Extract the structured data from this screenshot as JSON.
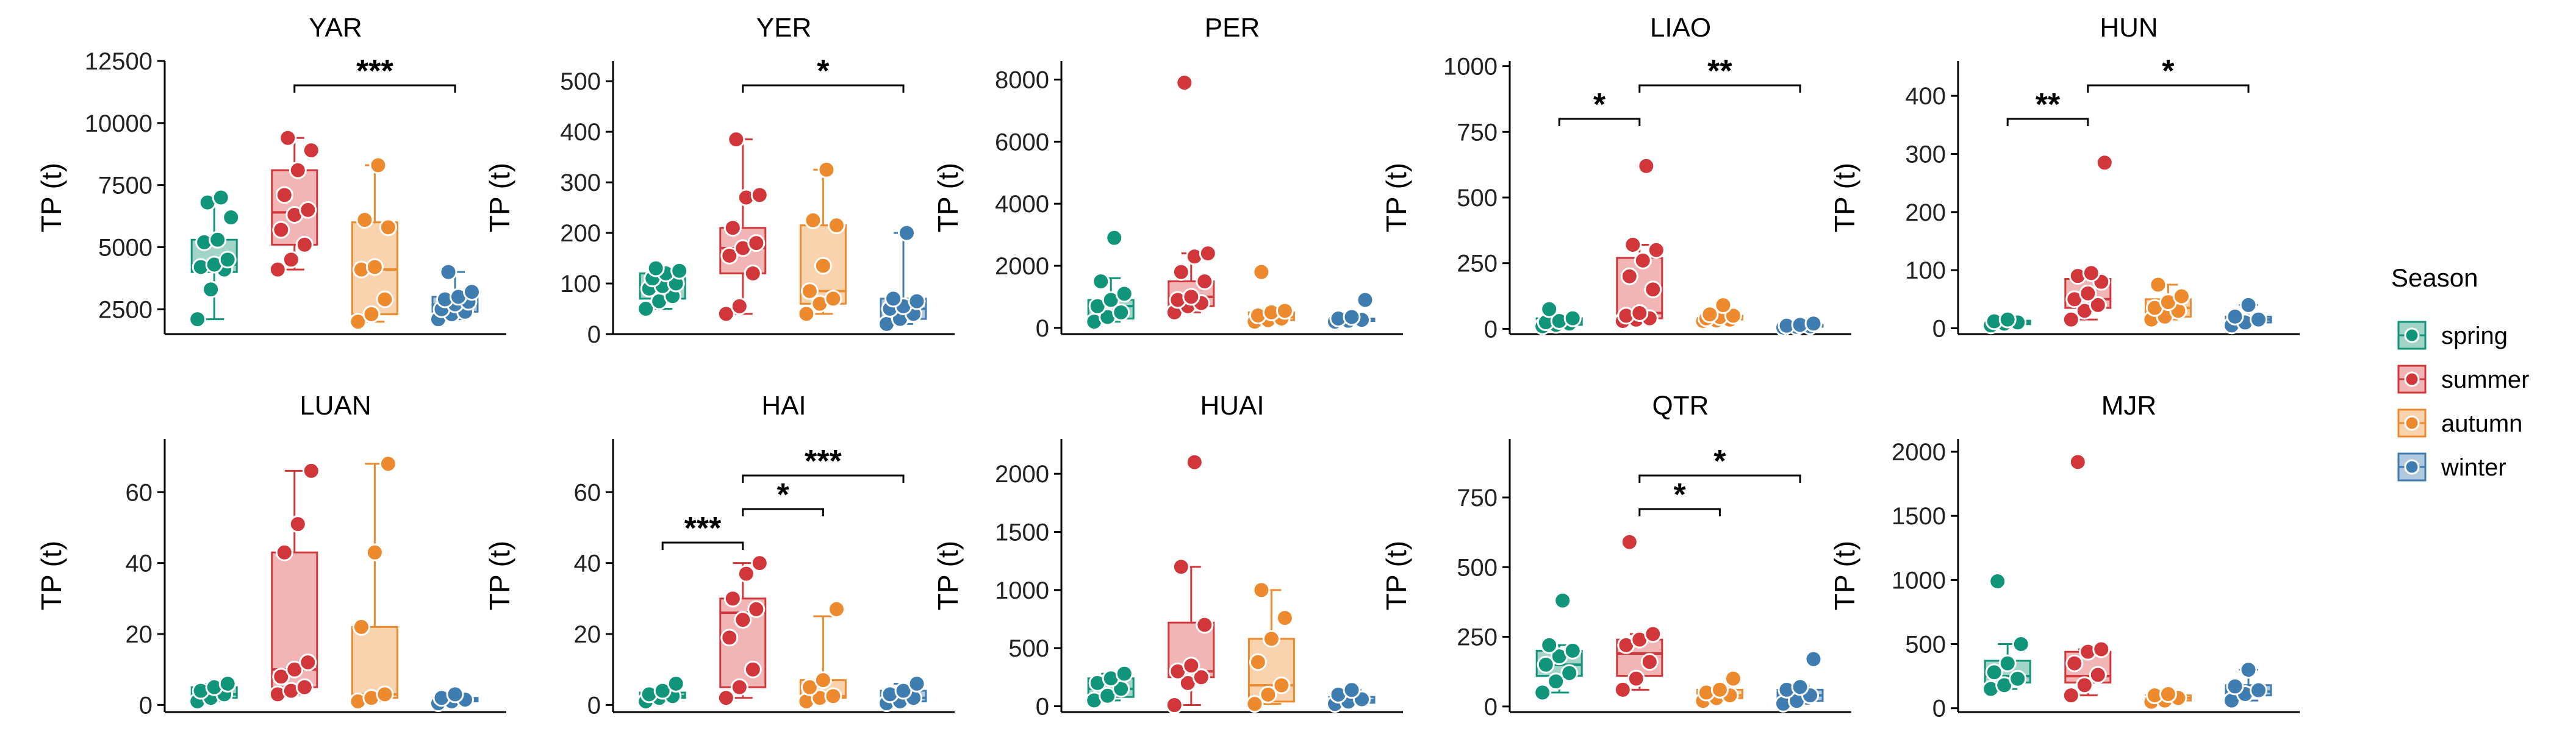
{
  "legend": {
    "title": "Season",
    "entries": [
      {
        "label": "spring",
        "color": "#11957a",
        "fill": "#a3d4c8"
      },
      {
        "label": "summer",
        "color": "#d1373a",
        "fill": "#f2b5b6"
      },
      {
        "label": "autumn",
        "color": "#ee8a2e",
        "fill": "#f9d2ae"
      },
      {
        "label": "winter",
        "color": "#3f7cb0",
        "fill": "#b1c9df"
      }
    ]
  },
  "chart_data": [
    {
      "type": "box",
      "title": "YAR",
      "ylabel": "TP (t)",
      "ylim": [
        1500,
        12500
      ],
      "yticks": [
        2500,
        5000,
        7500,
        10000,
        12500
      ],
      "categories": [
        "spring",
        "summer",
        "autumn",
        "winter"
      ],
      "boxes": [
        {
          "min": 2100,
          "q1": 4000,
          "median": 4300,
          "q3": 5300,
          "max": 7000,
          "points": [
            2100,
            3300,
            4100,
            4200,
            4300,
            4500,
            5200,
            5300,
            6200,
            6800,
            7000
          ]
        },
        {
          "min": 4100,
          "q1": 5100,
          "median": 6400,
          "q3": 8100,
          "max": 9400,
          "points": [
            4100,
            4500,
            5100,
            5700,
            6300,
            6500,
            7100,
            8100,
            8900,
            9400
          ]
        },
        {
          "min": 2000,
          "q1": 2300,
          "median": 4100,
          "q3": 6000,
          "max": 8300,
          "points": [
            2000,
            2300,
            2900,
            4100,
            4200,
            5800,
            6100,
            8300
          ]
        },
        {
          "min": 2100,
          "q1": 2400,
          "median": 2700,
          "q3": 3000,
          "max": 4000,
          "points": [
            2100,
            2300,
            2400,
            2500,
            2700,
            2800,
            2900,
            3000,
            3200,
            4000
          ]
        }
      ],
      "significance": [
        {
          "from": 1,
          "to": 3,
          "label": "***",
          "level": 0
        }
      ]
    },
    {
      "type": "box",
      "title": "YER",
      "ylabel": "TP (t)",
      "ylim": [
        0,
        540
      ],
      "yticks": [
        0,
        100,
        200,
        300,
        400,
        500
      ],
      "categories": [
        "spring",
        "summer",
        "autumn",
        "winter"
      ],
      "boxes": [
        {
          "min": 50,
          "q1": 70,
          "median": 95,
          "q3": 120,
          "max": 130,
          "points": [
            50,
            65,
            75,
            90,
            95,
            100,
            110,
            120,
            125,
            130
          ]
        },
        {
          "min": 40,
          "q1": 120,
          "median": 170,
          "q3": 210,
          "max": 385,
          "points": [
            40,
            55,
            120,
            155,
            170,
            180,
            210,
            270,
            275,
            385
          ]
        },
        {
          "min": 40,
          "q1": 60,
          "median": 85,
          "q3": 215,
          "max": 325,
          "points": [
            40,
            60,
            70,
            85,
            135,
            215,
            225,
            325
          ]
        },
        {
          "min": 20,
          "q1": 30,
          "median": 50,
          "q3": 70,
          "max": 200,
          "points": [
            20,
            30,
            40,
            50,
            55,
            65,
            70,
            200
          ]
        }
      ],
      "significance": [
        {
          "from": 1,
          "to": 3,
          "label": "*",
          "level": 0
        }
      ]
    },
    {
      "type": "box",
      "title": "PER",
      "ylabel": "TP (t)",
      "ylim": [
        -200,
        8600
      ],
      "yticks": [
        0,
        2000,
        4000,
        6000,
        8000
      ],
      "categories": [
        "spring",
        "summer",
        "autumn",
        "winter"
      ],
      "boxes": [
        {
          "min": 200,
          "q1": 300,
          "median": 700,
          "q3": 900,
          "max": 1600,
          "points": [
            200,
            350,
            500,
            700,
            900,
            1100,
            1500,
            2900
          ]
        },
        {
          "min": 500,
          "q1": 700,
          "median": 1000,
          "q3": 1500,
          "max": 2400,
          "points": [
            500,
            700,
            800,
            900,
            1000,
            1500,
            1800,
            2300,
            2400,
            7900
          ]
        },
        {
          "min": 200,
          "q1": 250,
          "median": 350,
          "q3": 500,
          "max": 600,
          "points": [
            200,
            250,
            300,
            400,
            500,
            550,
            1800
          ]
        },
        {
          "min": 200,
          "q1": 220,
          "median": 250,
          "q3": 300,
          "max": 350,
          "points": [
            200,
            230,
            260,
            300,
            350,
            900
          ]
        }
      ],
      "significance": []
    },
    {
      "type": "box",
      "title": "LIAO",
      "ylabel": "TP (t)",
      "ylim": [
        -20,
        1020
      ],
      "yticks": [
        0,
        250,
        500,
        750,
        1000
      ],
      "categories": [
        "spring",
        "summer",
        "autumn",
        "winter"
      ],
      "boxes": [
        {
          "min": 10,
          "q1": 15,
          "median": 25,
          "q3": 40,
          "max": 45,
          "points": [
            10,
            15,
            20,
            25,
            30,
            40,
            75
          ]
        },
        {
          "min": 30,
          "q1": 40,
          "median": 60,
          "q3": 270,
          "max": 320,
          "points": [
            30,
            35,
            40,
            50,
            60,
            150,
            200,
            260,
            300,
            320,
            620
          ]
        },
        {
          "min": 30,
          "q1": 35,
          "median": 40,
          "q3": 50,
          "max": 55,
          "points": [
            30,
            32,
            35,
            40,
            45,
            50,
            55,
            90
          ]
        },
        {
          "min": 5,
          "q1": 8,
          "median": 10,
          "q3": 15,
          "max": 20,
          "points": [
            5,
            8,
            10,
            12,
            15,
            20
          ]
        }
      ],
      "significance": [
        {
          "from": 0,
          "to": 1,
          "label": "*",
          "level": 0
        },
        {
          "from": 1,
          "to": 3,
          "label": "**",
          "level": 1
        }
      ]
    },
    {
      "type": "box",
      "title": "HUN",
      "ylabel": "TP (t)",
      "ylim": [
        -10,
        460
      ],
      "yticks": [
        0,
        100,
        200,
        300,
        400
      ],
      "categories": [
        "spring",
        "summer",
        "autumn",
        "winter"
      ],
      "boxes": [
        {
          "min": 5,
          "q1": 7,
          "median": 10,
          "q3": 13,
          "max": 15,
          "points": [
            5,
            8,
            10,
            12,
            15
          ]
        },
        {
          "min": 15,
          "q1": 35,
          "median": 50,
          "q3": 85,
          "max": 95,
          "points": [
            15,
            30,
            40,
            50,
            60,
            80,
            90,
            95,
            285
          ]
        },
        {
          "min": 15,
          "q1": 20,
          "median": 35,
          "q3": 50,
          "max": 75,
          "points": [
            15,
            20,
            30,
            35,
            45,
            55,
            75
          ]
        },
        {
          "min": 5,
          "q1": 10,
          "median": 15,
          "q3": 20,
          "max": 40,
          "points": [
            5,
            10,
            15,
            20,
            40
          ]
        }
      ],
      "significance": [
        {
          "from": 0,
          "to": 1,
          "label": "**",
          "level": 0
        },
        {
          "from": 1,
          "to": 3,
          "label": "*",
          "level": 1
        }
      ]
    },
    {
      "type": "box",
      "title": "LUAN",
      "ylabel": "TP (t)",
      "ylim": [
        -2,
        75
      ],
      "yticks": [
        0,
        20,
        40,
        60
      ],
      "categories": [
        "spring",
        "summer",
        "autumn",
        "winter"
      ],
      "boxes": [
        {
          "min": 1,
          "q1": 2,
          "median": 3,
          "q3": 5,
          "max": 6,
          "points": [
            1,
            2,
            3,
            4,
            5,
            6
          ]
        },
        {
          "min": 3,
          "q1": 5,
          "median": 10,
          "q3": 43,
          "max": 66,
          "points": [
            3,
            4,
            5,
            8,
            10,
            12,
            43,
            51,
            66
          ]
        },
        {
          "min": 1,
          "q1": 2,
          "median": 3,
          "q3": 22,
          "max": 68,
          "points": [
            1,
            2,
            3,
            22,
            43,
            68
          ]
        },
        {
          "min": 0.5,
          "q1": 1,
          "median": 1.5,
          "q3": 2,
          "max": 3,
          "points": [
            0.5,
            1,
            1.5,
            2,
            3
          ]
        }
      ],
      "significance": []
    },
    {
      "type": "box",
      "title": "HAI",
      "ylabel": "TP (t)",
      "ylim": [
        -2,
        75
      ],
      "yticks": [
        0,
        20,
        40,
        60
      ],
      "categories": [
        "spring",
        "summer",
        "autumn",
        "winter"
      ],
      "boxes": [
        {
          "min": 1,
          "q1": 2,
          "median": 2.5,
          "q3": 3.5,
          "max": 4,
          "points": [
            1,
            2,
            2.5,
            3,
            4,
            6
          ]
        },
        {
          "min": 2,
          "q1": 5,
          "median": 26,
          "q3": 30,
          "max": 40,
          "points": [
            2,
            5,
            10,
            19,
            24,
            27,
            30,
            37,
            40
          ]
        },
        {
          "min": 1,
          "q1": 2,
          "median": 2.5,
          "q3": 7,
          "max": 25,
          "points": [
            1,
            2,
            2.5,
            5,
            7,
            27
          ]
        },
        {
          "min": 0.5,
          "q1": 1,
          "median": 2,
          "q3": 4,
          "max": 6,
          "points": [
            0.5,
            1,
            2,
            3,
            4,
            6
          ]
        }
      ],
      "significance": [
        {
          "from": 0,
          "to": 1,
          "label": "***",
          "level": 0
        },
        {
          "from": 1,
          "to": 2,
          "label": "*",
          "level": 1
        },
        {
          "from": 1,
          "to": 3,
          "label": "***",
          "level": 2
        }
      ]
    },
    {
      "type": "box",
      "title": "HUAI",
      "ylabel": "TP (t)",
      "ylim": [
        -50,
        2300
      ],
      "yticks": [
        0,
        500,
        1000,
        1500,
        2000
      ],
      "categories": [
        "spring",
        "summer",
        "autumn",
        "winter"
      ],
      "boxes": [
        {
          "min": 50,
          "q1": 80,
          "median": 150,
          "q3": 240,
          "max": 280,
          "points": [
            50,
            90,
            150,
            200,
            240,
            280
          ]
        },
        {
          "min": 10,
          "q1": 250,
          "median": 300,
          "q3": 720,
          "max": 1200,
          "points": [
            10,
            200,
            250,
            300,
            350,
            700,
            1200,
            2100
          ]
        },
        {
          "min": 20,
          "q1": 40,
          "median": 180,
          "q3": 580,
          "max": 1000,
          "points": [
            20,
            100,
            180,
            380,
            580,
            760,
            1000
          ]
        },
        {
          "min": 20,
          "q1": 30,
          "median": 50,
          "q3": 80,
          "max": 140,
          "points": [
            20,
            40,
            60,
            100,
            140
          ]
        }
      ],
      "significance": []
    },
    {
      "type": "box",
      "title": "QTR",
      "ylabel": "TP (t)",
      "ylim": [
        -20,
        960
      ],
      "yticks": [
        0,
        250,
        500,
        750
      ],
      "categories": [
        "spring",
        "summer",
        "autumn",
        "winter"
      ],
      "boxes": [
        {
          "min": 50,
          "q1": 110,
          "median": 150,
          "q3": 200,
          "max": 220,
          "points": [
            50,
            90,
            120,
            150,
            180,
            200,
            220,
            380
          ]
        },
        {
          "min": 60,
          "q1": 110,
          "median": 190,
          "q3": 240,
          "max": 260,
          "points": [
            60,
            100,
            160,
            220,
            240,
            260,
            590
          ]
        },
        {
          "min": 20,
          "q1": 30,
          "median": 40,
          "q3": 60,
          "max": 70,
          "points": [
            20,
            30,
            40,
            50,
            60,
            100
          ]
        },
        {
          "min": 10,
          "q1": 20,
          "median": 40,
          "q3": 60,
          "max": 70,
          "points": [
            10,
            20,
            40,
            60,
            70,
            170
          ]
        }
      ],
      "significance": [
        {
          "from": 1,
          "to": 2,
          "label": "*",
          "level": 0
        },
        {
          "from": 1,
          "to": 3,
          "label": "*",
          "level": 1
        }
      ]
    },
    {
      "type": "box",
      "title": "MJR",
      "ylabel": "TP (t)",
      "ylim": [
        -30,
        2100
      ],
      "yticks": [
        0,
        500,
        1000,
        1500,
        2000
      ],
      "categories": [
        "spring",
        "summer",
        "autumn",
        "winter"
      ],
      "boxes": [
        {
          "min": 150,
          "q1": 200,
          "median": 250,
          "q3": 370,
          "max": 500,
          "points": [
            150,
            180,
            230,
            280,
            350,
            500,
            990
          ]
        },
        {
          "min": 100,
          "q1": 200,
          "median": 250,
          "q3": 440,
          "max": 460,
          "points": [
            100,
            180,
            260,
            350,
            440,
            460,
            1920
          ]
        },
        {
          "min": 50,
          "q1": 60,
          "median": 80,
          "q3": 100,
          "max": 110,
          "points": [
            50,
            60,
            80,
            100,
            110
          ]
        },
        {
          "min": 60,
          "q1": 100,
          "median": 130,
          "q3": 180,
          "max": 300,
          "points": [
            60,
            110,
            140,
            170,
            300
          ]
        }
      ],
      "significance": []
    }
  ]
}
